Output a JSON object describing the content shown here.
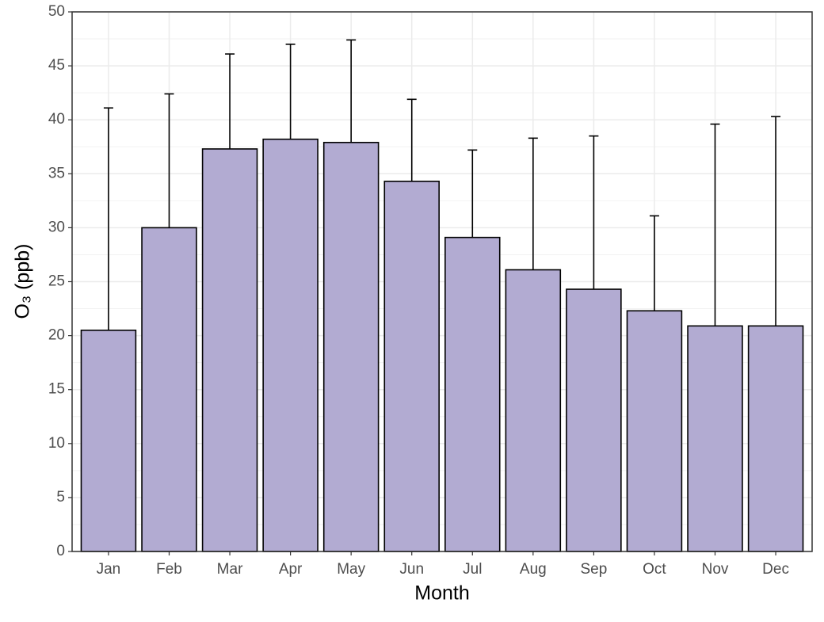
{
  "chart_data": {
    "type": "bar",
    "x_label": "Month",
    "y_label": "O₃ (ppb)",
    "categories": [
      "Jan",
      "Feb",
      "Mar",
      "Apr",
      "May",
      "Jun",
      "Jul",
      "Aug",
      "Sep",
      "Oct",
      "Nov",
      "Dec"
    ],
    "values": [
      20.5,
      30.0,
      37.3,
      38.2,
      37.9,
      34.3,
      29.1,
      26.1,
      24.3,
      22.3,
      20.9,
      20.9
    ],
    "errors": [
      20.6,
      12.4,
      8.8,
      8.8,
      9.5,
      7.6,
      8.1,
      12.2,
      14.2,
      8.8,
      18.7,
      19.4
    ],
    "color": "#b2abd2",
    "ylim": [
      0,
      50
    ],
    "yticks": [
      0,
      5,
      10,
      15,
      20,
      25,
      30,
      35,
      40,
      45,
      50
    ],
    "grid": true
  }
}
